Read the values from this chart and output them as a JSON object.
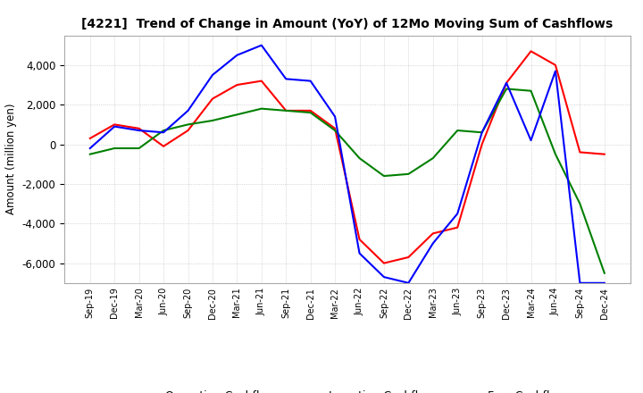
{
  "title": "[4221]  Trend of Change in Amount (YoY) of 12Mo Moving Sum of Cashflows",
  "ylabel": "Amount (million yen)",
  "ylim": [
    -7000,
    5500
  ],
  "yticks": [
    -6000,
    -4000,
    -2000,
    0,
    2000,
    4000
  ],
  "x_labels": [
    "Sep-19",
    "Dec-19",
    "Mar-20",
    "Jun-20",
    "Sep-20",
    "Dec-20",
    "Mar-21",
    "Jun-21",
    "Sep-21",
    "Dec-21",
    "Mar-22",
    "Jun-22",
    "Sep-22",
    "Dec-22",
    "Mar-23",
    "Jun-23",
    "Sep-23",
    "Dec-23",
    "Mar-24",
    "Jun-24",
    "Sep-24",
    "Dec-24"
  ],
  "operating": [
    300,
    1000,
    800,
    -100,
    700,
    2300,
    3000,
    3200,
    1700,
    1700,
    800,
    -4800,
    -6000,
    -5700,
    -4500,
    -4200,
    0,
    3100,
    4700,
    4000,
    -400,
    -500
  ],
  "investing": [
    -500,
    -200,
    -200,
    700,
    1000,
    1200,
    1500,
    1800,
    1700,
    1600,
    700,
    -700,
    -1600,
    -1500,
    -700,
    700,
    600,
    2800,
    2700,
    -500,
    -3000,
    -6500
  ],
  "free": [
    -200,
    900,
    700,
    600,
    1700,
    3500,
    4500,
    5000,
    3300,
    3200,
    1400,
    -5500,
    -6700,
    -7000,
    -5000,
    -3500,
    600,
    3100,
    200,
    3700,
    -7000,
    -7000
  ],
  "colors": {
    "operating": "#ff0000",
    "investing": "#008000",
    "free": "#0000ff"
  },
  "line_width": 1.5,
  "background_color": "#ffffff",
  "grid_color": "#bbbbbb"
}
